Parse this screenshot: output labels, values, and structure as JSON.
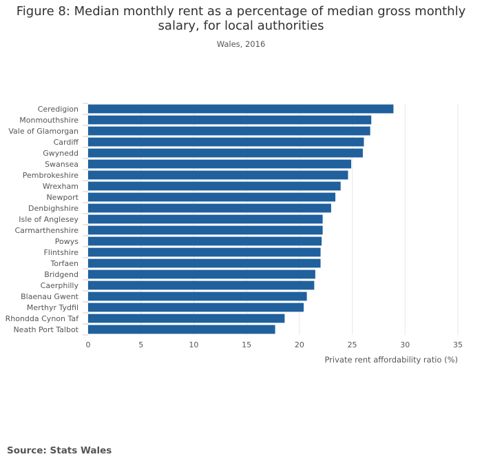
{
  "title": "Figure 8: Median monthly rent as a percentage of median gross monthly salary, for local authorities",
  "subtitle": "Wales, 2016",
  "source": "Source: Stats Wales",
  "colors": {
    "bar": "#20609d",
    "grid": "#e6e6e6",
    "text": "#555555"
  },
  "chart_data": {
    "type": "bar",
    "orientation": "horizontal",
    "title": "Figure 8: Median monthly rent as a percentage of median gross monthly salary, for local authorities",
    "subtitle": "Wales, 2016",
    "xlabel": "Private rent affordability ratio (%)",
    "ylabel": "",
    "xlim": [
      0,
      35
    ],
    "xticks": [
      0,
      5,
      10,
      15,
      20,
      25,
      30,
      35
    ],
    "grid": true,
    "categories": [
      "Ceredigion",
      "Monmouthshire",
      "Vale of Glamorgan",
      "Cardiff",
      "Gwynedd",
      "Swansea",
      "Pembrokeshire",
      "Wrexham",
      "Newport",
      "Denbighshire",
      "Isle of Anglesey",
      "Carmarthenshire",
      "Powys",
      "Flintshire",
      "Torfaen",
      "Bridgend",
      "Caerphilly",
      "Blaenau Gwent",
      "Merthyr Tydfil",
      "Rhondda Cynon Taf",
      "Neath Port Talbot"
    ],
    "values": [
      28.9,
      26.8,
      26.7,
      26.1,
      26.0,
      24.9,
      24.6,
      23.9,
      23.4,
      23.0,
      22.2,
      22.2,
      22.1,
      22.0,
      22.0,
      21.5,
      21.4,
      20.7,
      20.4,
      18.6,
      17.7
    ]
  }
}
